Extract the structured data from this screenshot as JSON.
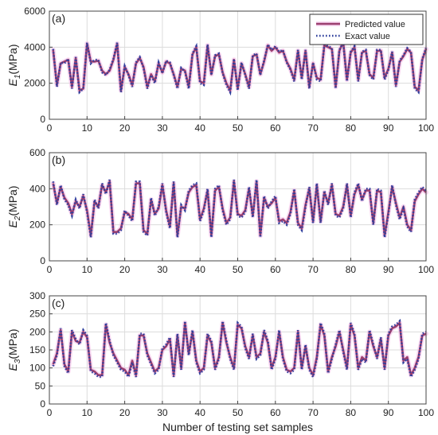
{
  "chart_data": [
    {
      "type": "line",
      "panel_label": "(a)",
      "ylabel_main": "E",
      "ylabel_sub": "1",
      "ylabel_unit": "(MPa)",
      "ylim": [
        0,
        6000
      ],
      "yticks": [
        0,
        2000,
        4000,
        6000
      ],
      "xlim": [
        0,
        100
      ],
      "xticks": [
        0,
        10,
        20,
        30,
        40,
        50,
        60,
        70,
        80,
        90,
        100
      ],
      "grid": true,
      "legend": {
        "position": "top-right",
        "entries": [
          "Predicted value",
          "Exact value"
        ]
      },
      "x": [
        1,
        2,
        3,
        4,
        5,
        6,
        7,
        8,
        9,
        10,
        11,
        12,
        13,
        14,
        15,
        16,
        17,
        18,
        19,
        20,
        21,
        22,
        23,
        24,
        25,
        26,
        27,
        28,
        29,
        30,
        31,
        32,
        33,
        34,
        35,
        36,
        37,
        38,
        39,
        40,
        41,
        42,
        43,
        44,
        45,
        46,
        47,
        48,
        49,
        50,
        51,
        52,
        53,
        54,
        55,
        56,
        57,
        58,
        59,
        60,
        61,
        62,
        63,
        64,
        65,
        66,
        67,
        68,
        69,
        70,
        71,
        72,
        73,
        74,
        75,
        76,
        77,
        78,
        79,
        80,
        81,
        82,
        83,
        84,
        85,
        86,
        87,
        88,
        89,
        90,
        91,
        92,
        93,
        94,
        95,
        96,
        97,
        98,
        99,
        100
      ],
      "series": [
        {
          "name": "Predicted value",
          "values": [
            3850,
            1900,
            3100,
            3200,
            3300,
            1800,
            3400,
            1600,
            1700,
            4200,
            3200,
            3200,
            3250,
            2700,
            2500,
            2700,
            3300,
            4200,
            1600,
            2900,
            2500,
            1900,
            3100,
            3400,
            2900,
            1800,
            2500,
            2100,
            3100,
            2600,
            3200,
            3100,
            2500,
            1800,
            2800,
            2700,
            1800,
            3600,
            4000,
            2100,
            2000,
            4100,
            2500,
            3500,
            3600,
            2600,
            2000,
            1600,
            3300,
            1700,
            3100,
            2500,
            1800,
            3500,
            3600,
            2500,
            3200,
            4100,
            3800,
            4000,
            3700,
            3800,
            3200,
            2800,
            2200,
            3800,
            2300,
            3800,
            1800,
            3100,
            2300,
            2200,
            4100,
            4000,
            3900,
            1800,
            3800,
            4300,
            2200,
            3700,
            4000,
            2200,
            3700,
            3800,
            2500,
            2300,
            3800,
            3800,
            2300,
            2800,
            3700,
            1900,
            3200,
            3500,
            3900,
            3700,
            1800,
            1600,
            3300,
            3900
          ]
        },
        {
          "name": "Exact value",
          "values": [
            3900,
            1800,
            3150,
            3100,
            3350,
            1700,
            3450,
            1500,
            1700,
            4250,
            3100,
            3300,
            3300,
            2600,
            2450,
            2750,
            3350,
            4250,
            1500,
            2950,
            2450,
            1800,
            3150,
            3450,
            2850,
            1700,
            2450,
            2000,
            3150,
            2550,
            3250,
            3150,
            2450,
            1700,
            2850,
            2650,
            1700,
            3650,
            4050,
            2000,
            1900,
            4150,
            2450,
            3550,
            3650,
            2550,
            1900,
            1500,
            3350,
            1600,
            3150,
            2450,
            1700,
            3550,
            3650,
            2450,
            3250,
            4150,
            3850,
            4050,
            3750,
            3850,
            3150,
            2750,
            2100,
            3850,
            2200,
            3850,
            1700,
            3150,
            2200,
            2100,
            4150,
            4050,
            3950,
            1700,
            3850,
            4250,
            2100,
            3750,
            4050,
            2100,
            3750,
            3850,
            2450,
            2200,
            3850,
            3850,
            2200,
            2750,
            3750,
            1800,
            3250,
            3550,
            3950,
            3750,
            1700,
            1500,
            3350,
            3950
          ]
        }
      ]
    },
    {
      "type": "line",
      "panel_label": "(b)",
      "ylabel_main": "E",
      "ylabel_sub": "2",
      "ylabel_unit": "(MPa)",
      "ylim": [
        0,
        600
      ],
      "yticks": [
        0,
        200,
        400,
        600
      ],
      "xlim": [
        0,
        100
      ],
      "xticks": [
        0,
        10,
        20,
        30,
        40,
        50,
        60,
        70,
        80,
        90,
        100
      ],
      "grid": true,
      "x": [
        1,
        2,
        3,
        4,
        5,
        6,
        7,
        8,
        9,
        10,
        11,
        12,
        13,
        14,
        15,
        16,
        17,
        18,
        19,
        20,
        21,
        22,
        23,
        24,
        25,
        26,
        27,
        28,
        29,
        30,
        31,
        32,
        33,
        34,
        35,
        36,
        37,
        38,
        39,
        40,
        41,
        42,
        43,
        44,
        45,
        46,
        47,
        48,
        49,
        50,
        51,
        52,
        53,
        54,
        55,
        56,
        57,
        58,
        59,
        60,
        61,
        62,
        63,
        64,
        65,
        66,
        67,
        68,
        69,
        70,
        71,
        72,
        73,
        74,
        75,
        76,
        77,
        78,
        79,
        80,
        81,
        82,
        83,
        84,
        85,
        86,
        87,
        88,
        89,
        90,
        91,
        92,
        93,
        94,
        95,
        96,
        97,
        98,
        99,
        100
      ],
      "series": [
        {
          "name": "Predicted value",
          "values": [
            430,
            320,
            410,
            350,
            320,
            260,
            330,
            300,
            360,
            280,
            140,
            330,
            300,
            420,
            380,
            440,
            160,
            160,
            180,
            270,
            260,
            230,
            430,
            430,
            170,
            150,
            340,
            260,
            290,
            420,
            280,
            190,
            430,
            140,
            300,
            290,
            380,
            410,
            420,
            230,
            290,
            390,
            140,
            390,
            410,
            290,
            210,
            240,
            440,
            260,
            250,
            280,
            400,
            250,
            440,
            140,
            350,
            300,
            320,
            350,
            220,
            230,
            210,
            270,
            390,
            210,
            180,
            310,
            400,
            220,
            420,
            220,
            380,
            320,
            420,
            260,
            250,
            300,
            420,
            250,
            370,
            420,
            340,
            390,
            390,
            210,
            390,
            380,
            140,
            270,
            410,
            320,
            240,
            300,
            200,
            170,
            330,
            370,
            400,
            380
          ]
        },
        {
          "name": "Exact value",
          "values": [
            440,
            310,
            420,
            340,
            310,
            250,
            340,
            290,
            370,
            270,
            130,
            340,
            290,
            430,
            370,
            450,
            150,
            150,
            170,
            280,
            250,
            220,
            440,
            440,
            160,
            140,
            350,
            250,
            300,
            430,
            270,
            180,
            440,
            130,
            310,
            280,
            390,
            420,
            430,
            220,
            280,
            400,
            130,
            400,
            420,
            280,
            200,
            230,
            450,
            250,
            240,
            270,
            410,
            240,
            450,
            130,
            360,
            290,
            330,
            360,
            210,
            220,
            200,
            260,
            400,
            200,
            170,
            300,
            410,
            210,
            430,
            210,
            390,
            310,
            430,
            250,
            240,
            290,
            430,
            240,
            380,
            430,
            330,
            400,
            400,
            200,
            400,
            390,
            130,
            260,
            420,
            310,
            230,
            290,
            190,
            160,
            340,
            380,
            410,
            390
          ]
        }
      ]
    },
    {
      "type": "line",
      "panel_label": "(c)",
      "ylabel_main": "E",
      "ylabel_sub": "3",
      "ylabel_unit": "(MPa)",
      "xlabel": "Number of testing set samples",
      "ylim": [
        0,
        300
      ],
      "yticks": [
        0,
        50,
        100,
        150,
        200,
        250,
        300
      ],
      "xlim": [
        0,
        100
      ],
      "xticks": [
        0,
        10,
        20,
        30,
        40,
        50,
        60,
        70,
        80,
        90,
        100
      ],
      "grid": true,
      "x": [
        1,
        2,
        3,
        4,
        5,
        6,
        7,
        8,
        9,
        10,
        11,
        12,
        13,
        14,
        15,
        16,
        17,
        18,
        19,
        20,
        21,
        22,
        23,
        24,
        25,
        26,
        27,
        28,
        29,
        30,
        31,
        32,
        33,
        34,
        35,
        36,
        37,
        38,
        39,
        40,
        41,
        42,
        43,
        44,
        45,
        46,
        47,
        48,
        49,
        50,
        51,
        52,
        53,
        54,
        55,
        56,
        57,
        58,
        59,
        60,
        61,
        62,
        63,
        64,
        65,
        66,
        67,
        68,
        69,
        70,
        71,
        72,
        73,
        74,
        75,
        76,
        77,
        78,
        79,
        80,
        81,
        82,
        83,
        84,
        85,
        86,
        87,
        88,
        89,
        90,
        91,
        92,
        93,
        94,
        95,
        96,
        97,
        98,
        99,
        100
      ],
      "series": [
        {
          "name": "Predicted value",
          "values": [
            110,
            140,
            205,
            110,
            90,
            200,
            175,
            170,
            200,
            185,
            95,
            90,
            80,
            80,
            220,
            170,
            140,
            120,
            100,
            95,
            80,
            120,
            80,
            190,
            190,
            140,
            115,
            90,
            100,
            150,
            160,
            180,
            80,
            190,
            100,
            225,
            140,
            200,
            120,
            90,
            100,
            190,
            170,
            100,
            130,
            225,
            170,
            130,
            100,
            220,
            210,
            160,
            130,
            190,
            130,
            140,
            200,
            170,
            100,
            130,
            200,
            130,
            95,
            90,
            100,
            200,
            100,
            160,
            100,
            80,
            130,
            220,
            190,
            90,
            130,
            160,
            200,
            150,
            100,
            220,
            190,
            100,
            130,
            120,
            200,
            160,
            130,
            180,
            100,
            190,
            210,
            215,
            225,
            120,
            130,
            80,
            100,
            130,
            190,
            195
          ]
        },
        {
          "name": "Exact value",
          "values": [
            105,
            135,
            210,
            105,
            85,
            205,
            180,
            165,
            205,
            190,
            90,
            85,
            75,
            75,
            225,
            175,
            135,
            115,
            95,
            90,
            75,
            115,
            75,
            195,
            195,
            135,
            110,
            85,
            95,
            155,
            165,
            185,
            75,
            195,
            95,
            230,
            135,
            205,
            115,
            85,
            95,
            195,
            175,
            95,
            125,
            230,
            175,
            125,
            95,
            225,
            215,
            155,
            125,
            195,
            125,
            135,
            205,
            175,
            95,
            125,
            205,
            125,
            90,
            85,
            95,
            205,
            95,
            165,
            95,
            75,
            125,
            225,
            195,
            85,
            125,
            165,
            205,
            145,
            95,
            225,
            195,
            95,
            125,
            115,
            205,
            165,
            125,
            185,
            95,
            195,
            215,
            220,
            230,
            115,
            125,
            75,
            95,
            125,
            195,
            200
          ]
        }
      ]
    }
  ],
  "colors": {
    "predicted": "#9b3f6f",
    "predicted_halo": "#f2b8e6",
    "exact": "#2e3f9c",
    "grid": "#dcdcdc",
    "axis": "#444444"
  }
}
